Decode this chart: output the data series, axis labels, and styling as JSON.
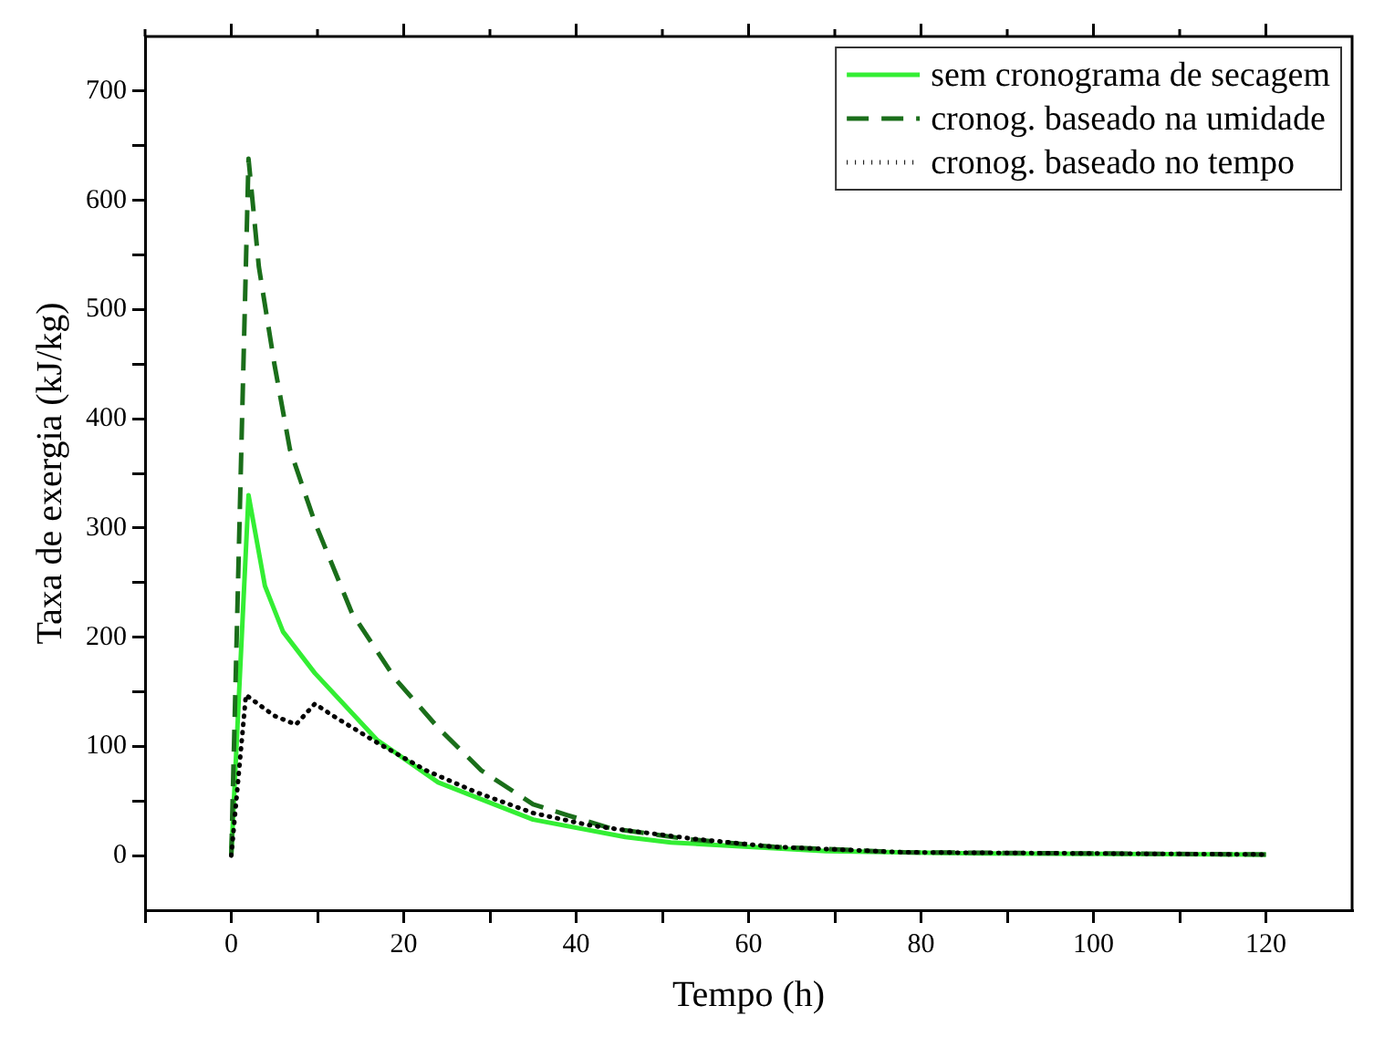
{
  "chart_data": {
    "type": "line",
    "xlabel": "Tempo (h)",
    "ylabel": "Taxa de exergia (kJ/kg)",
    "xlim": [
      -10,
      130
    ],
    "ylim": [
      -50,
      750
    ],
    "xticks": [
      {
        "value": -10,
        "label": null
      },
      0,
      {
        "value": 10,
        "label": null
      },
      20,
      {
        "value": 30,
        "label": null
      },
      40,
      {
        "value": 50,
        "label": null
      },
      60,
      {
        "value": 70,
        "label": null
      },
      80,
      {
        "value": 90,
        "label": null
      },
      100,
      {
        "value": 110,
        "label": null
      },
      120
    ],
    "yticks": [
      0,
      {
        "value": 50,
        "label": null
      },
      100,
      {
        "value": 150,
        "label": null
      },
      200,
      {
        "value": 250,
        "label": null
      },
      300,
      {
        "value": 350,
        "label": null
      },
      400,
      {
        "value": 450,
        "label": null
      },
      500,
      {
        "value": 550,
        "label": null
      },
      600,
      {
        "value": 650,
        "label": null
      },
      700
    ],
    "grid": false,
    "legend": "top right",
    "marker": "none",
    "series": [
      {
        "name": "sem cronograma de secagem",
        "color": "#33ee33",
        "line_style": "solid",
        "x": [
          0,
          2,
          3.9,
          6,
          9.7,
          16.9,
          24,
          35,
          45.7,
          51,
          69,
          87,
          120
        ],
        "values": [
          0,
          330,
          247,
          205,
          167,
          106,
          67,
          33,
          17,
          12,
          4,
          2,
          1
        ]
      },
      {
        "name": "cronog. baseado na umidade",
        "color": "#1a6e1a",
        "line_style": "dashed",
        "x": [
          0,
          2,
          2.4,
          3.2,
          5,
          6.8,
          9.7,
          14,
          19,
          24,
          29,
          35,
          39,
          44,
          53,
          63,
          78,
          120
        ],
        "values": [
          0,
          638,
          605,
          539,
          450,
          372,
          305,
          222,
          162,
          117,
          78,
          47,
          37,
          25,
          15,
          8,
          3,
          1
        ]
      },
      {
        "name": "cronog. baseado no tempo",
        "color": "#000000",
        "line_style": "dotted",
        "x": [
          0,
          1.7,
          5,
          7.5,
          9.7,
          11.8,
          17,
          22.6,
          28.4,
          35,
          41.4,
          44,
          54,
          63,
          78,
          120
        ],
        "values": [
          0,
          147,
          128,
          120,
          139,
          128,
          103,
          78,
          58,
          39,
          28,
          25,
          15,
          8,
          3,
          1
        ]
      }
    ]
  }
}
